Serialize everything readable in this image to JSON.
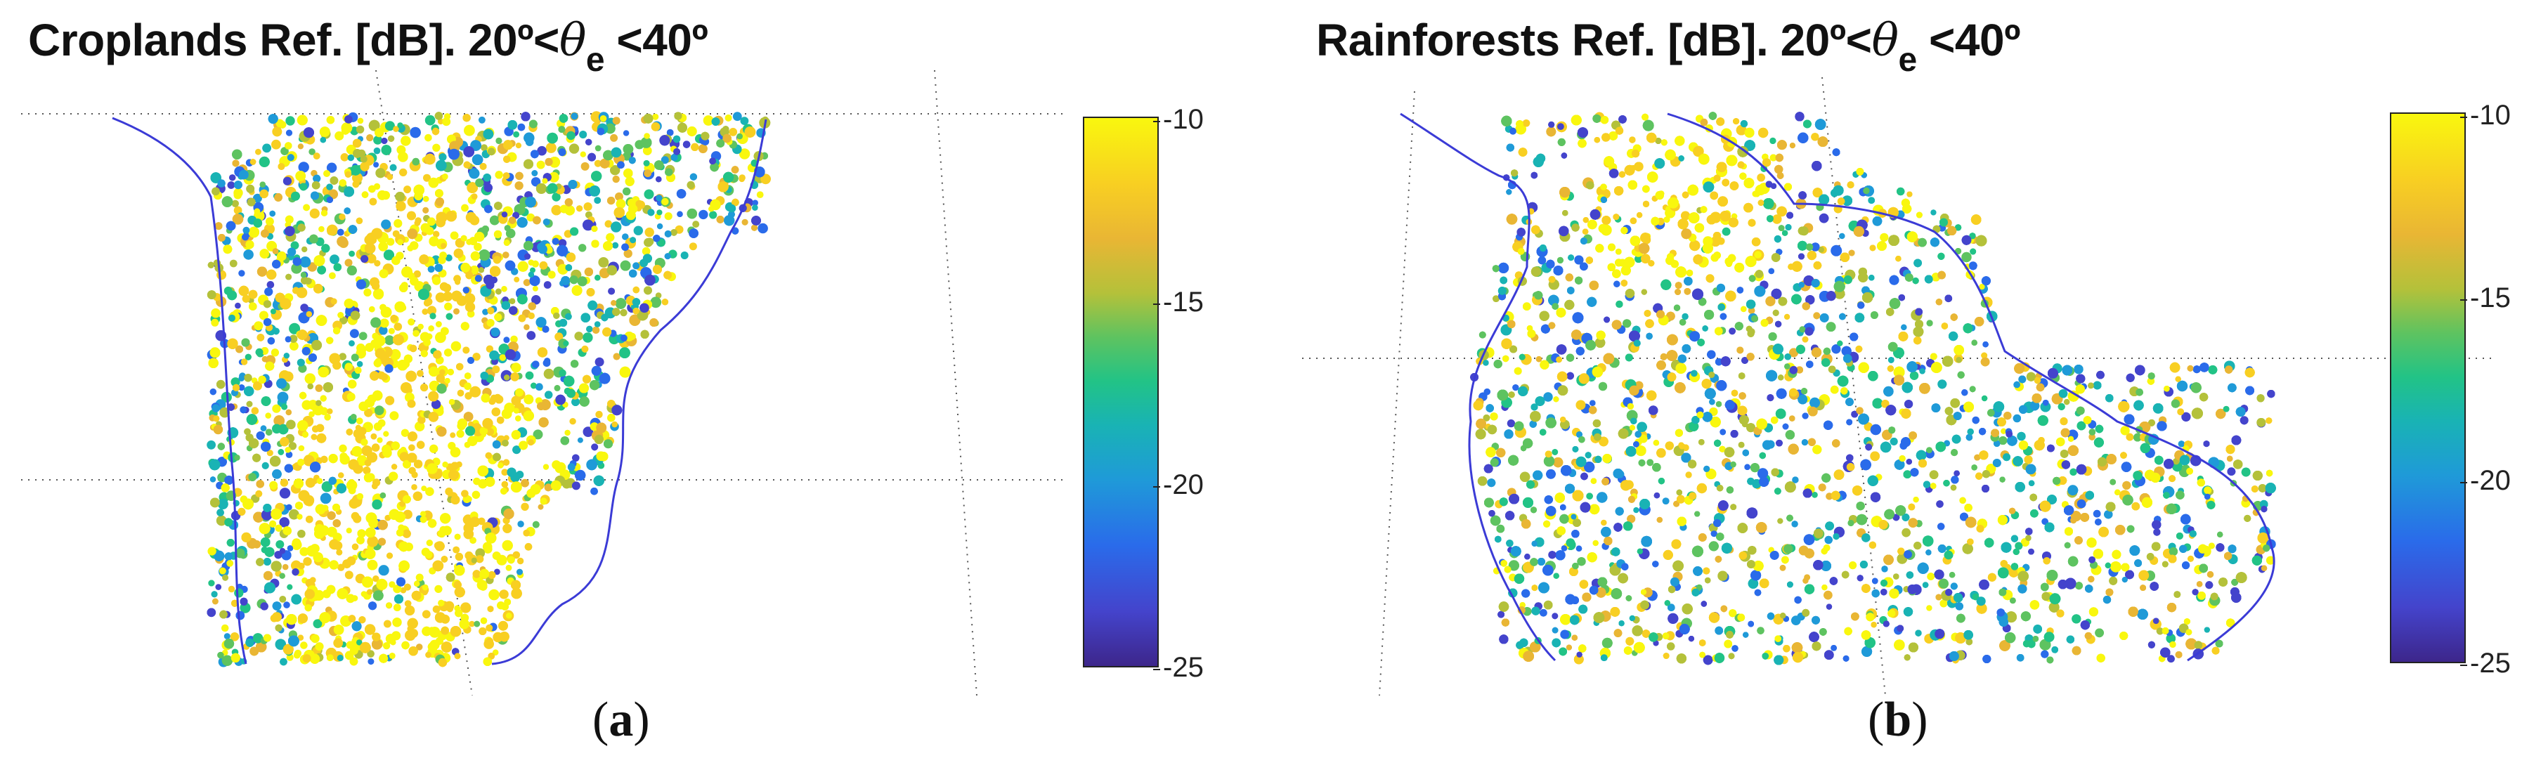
{
  "figure": {
    "panels": [
      {
        "caption_letter": "a",
        "title_main": "Croplands Ref. [dB]. 20º<",
        "title_symbol": "θ",
        "title_sub": "e",
        "title_tail": " <40º",
        "colorbar_ticks": [
          "-10",
          "-15",
          "-20",
          "-25"
        ]
      },
      {
        "caption_letter": "b",
        "title_main": "Rainforests Ref. [dB]. 20º<",
        "title_symbol": "θ",
        "title_sub": "e",
        "title_tail": " <40º",
        "colorbar_ticks": [
          "-10",
          "-15",
          "-20",
          "-25"
        ]
      }
    ]
  },
  "chart_data": [
    {
      "type": "heatmap",
      "title": "Croplands Ref. [dB]. 20º<θe <40º",
      "colorbar": {
        "min": -25,
        "max": -10,
        "ticks": [
          -10,
          -15,
          -20,
          -25
        ]
      },
      "colormap": "parula",
      "colors": {
        "low": "#3d268b",
        "mid": "#22c386",
        "high": "#f9f70e",
        "coast": "#3b3bd6"
      },
      "grid": true
    },
    {
      "type": "heatmap",
      "title": "Rainforests Ref. [dB]. 20º<θe <40º",
      "colorbar": {
        "min": -25,
        "max": -10,
        "ticks": [
          -10,
          -15,
          -20,
          -25
        ]
      },
      "colormap": "parula",
      "colors": {
        "low": "#3d268b",
        "mid": "#22c386",
        "high": "#f9f70e",
        "coast": "#3b3bd6"
      },
      "grid": true
    }
  ]
}
